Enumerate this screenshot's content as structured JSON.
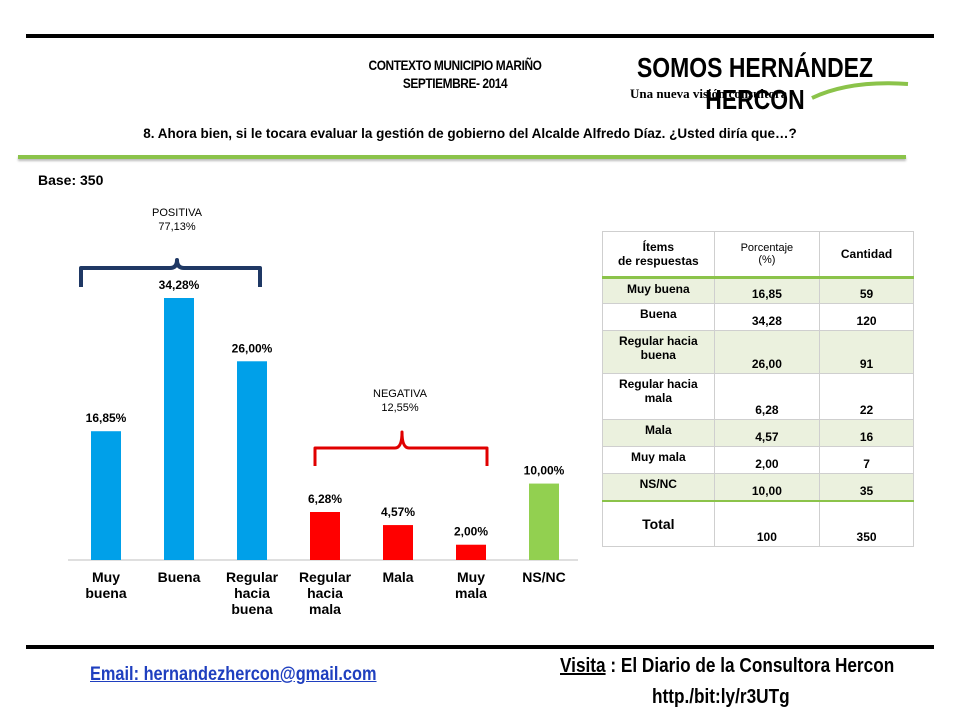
{
  "header": {
    "context_line1": "CONTEXTO MUNICIPIO MARIÑO",
    "context_line2": "SEPTIEMBRE- 2014",
    "brand": "SOMOS HERNÁNDEZ HERCON",
    "tagline": "Una nueva visión consultora"
  },
  "question": "8. Ahora bien, si le tocara evaluar la gestión de gobierno del Alcalde Alfredo Díaz. ¿Usted diría que…?",
  "base": "Base: 350",
  "groups": {
    "positive_label": "POSITIVA",
    "positive_value": "77,13%",
    "negative_label": "NEGATIVA",
    "negative_value": "12,55%"
  },
  "chart_data": {
    "type": "bar",
    "title": "",
    "xlabel": "",
    "ylabel": "",
    "ylim": [
      0,
      40
    ],
    "grid": false,
    "categories": [
      "Muy buena",
      "Buena",
      "Regular hacia buena",
      "Regular hacia mala",
      "Mala",
      "Muy mala",
      "NS/NC"
    ],
    "category_lines": [
      [
        "Muy",
        "buena"
      ],
      [
        "Buena"
      ],
      [
        "Regular",
        "hacia",
        "buena"
      ],
      [
        "Regular",
        "hacia",
        "mala"
      ],
      [
        "Mala"
      ],
      [
        "Muy",
        "mala"
      ],
      [
        "NS/NC"
      ]
    ],
    "values": [
      16.85,
      34.28,
      26.0,
      6.28,
      4.57,
      2.0,
      10.0
    ],
    "data_labels": [
      "16,85%",
      "34,28%",
      "26,00%",
      "6,28%",
      "4,57%",
      "2,00%",
      "10,00%"
    ],
    "colors": [
      "#00a0e9",
      "#00a0e9",
      "#00a0e9",
      "#ff0000",
      "#ff0000",
      "#ff0000",
      "#92d050"
    ]
  },
  "table": {
    "headers": [
      "Ítems\nde respuestas",
      "Porcentaje\n(%)",
      "Cantidad"
    ],
    "rows": [
      {
        "item": "Muy buena",
        "pct": "16,85",
        "qty": "59"
      },
      {
        "item": "Buena",
        "pct": "34,28",
        "qty": "120"
      },
      {
        "item": "Regular hacia buena",
        "pct": "26,00",
        "qty": "91"
      },
      {
        "item": "Regular hacia mala",
        "pct": "6,28",
        "qty": "22"
      },
      {
        "item": "Mala",
        "pct": "4,57",
        "qty": "16"
      },
      {
        "item": "Muy mala",
        "pct": "2,00",
        "qty": "7"
      },
      {
        "item": "NS/NC",
        "pct": "10,00",
        "qty": "35"
      }
    ],
    "total": {
      "item": "Total",
      "pct": "100",
      "qty": "350"
    }
  },
  "footer": {
    "email": "Email: hernandezhercon@gmail.com",
    "visit_word": "Visita",
    "visit_rest": " : El Diario de la Consultora Hercon",
    "url": "http./bit:ly/r3UTg"
  },
  "colors": {
    "accent_green": "#8bc34a",
    "positive_bracket": "#1f3864",
    "negative_bracket": "#e00000",
    "email_blue": "#1f3fbf"
  }
}
